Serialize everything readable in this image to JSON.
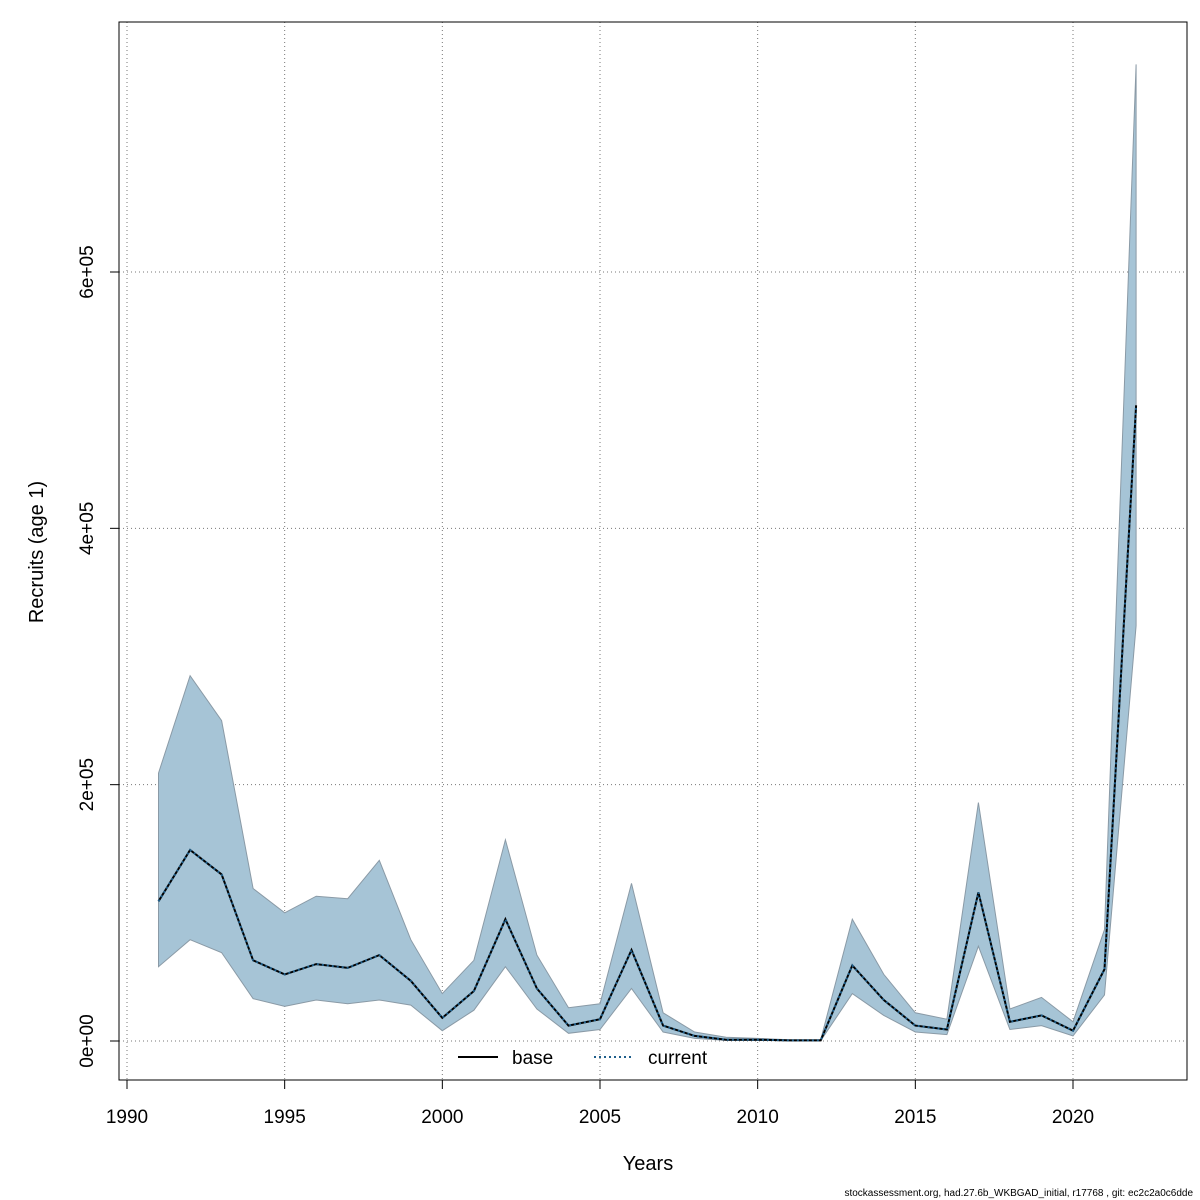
{
  "chart_data": {
    "type": "line",
    "title": "",
    "xlabel": "Years",
    "ylabel": "Recruits (age 1)",
    "xlim": [
      1990,
      2022
    ],
    "ylim": [
      0,
      800000
    ],
    "x_ticks": [
      1990,
      1995,
      2000,
      2005,
      2010,
      2015,
      2020
    ],
    "x_tick_labels": [
      "1990",
      "1995",
      "2000",
      "2005",
      "2010",
      "2015",
      "2020"
    ],
    "y_ticks": [
      0,
      200000,
      400000,
      600000
    ],
    "y_tick_labels": [
      "0e+00",
      "2e+05",
      "4e+05",
      "6e+05"
    ],
    "grid": true,
    "legend_placement": "bottom",
    "band_color": "#a6c4d6",
    "band_edge_color": "#8a9aa6",
    "x": [
      1991,
      1992,
      1993,
      1994,
      1995,
      1996,
      1997,
      1998,
      1999,
      2000,
      2001,
      2002,
      2003,
      2004,
      2005,
      2006,
      2007,
      2008,
      2009,
      2010,
      2011,
      2012,
      2013,
      2014,
      2015,
      2016,
      2017,
      2018,
      2019,
      2020,
      2021,
      2022
    ],
    "band_upper": [
      209000,
      285000,
      250000,
      119000,
      100000,
      113000,
      111000,
      141000,
      79000,
      37000,
      63000,
      157000,
      67000,
      26000,
      29000,
      123000,
      22000,
      7000,
      3000,
      2000,
      1000,
      1000,
      95000,
      52000,
      22000,
      17000,
      186000,
      25000,
      34000,
      15000,
      87000,
      762000
    ],
    "band_lower": [
      58000,
      79000,
      69000,
      33000,
      27000,
      32000,
      29000,
      32000,
      28000,
      8000,
      24000,
      58000,
      25000,
      6000,
      9000,
      41000,
      7000,
      2000,
      500,
      400,
      200,
      200,
      37000,
      20000,
      7000,
      5000,
      74000,
      9000,
      12000,
      4000,
      36000,
      324000
    ],
    "series": [
      {
        "name": "base",
        "line_style": "solid",
        "color": "#000000",
        "values": [
          109000,
          149000,
          130000,
          63000,
          52000,
          60000,
          57000,
          67000,
          47000,
          18000,
          39000,
          95000,
          41000,
          12000,
          17000,
          71000,
          12000,
          4000,
          1000,
          1000,
          500,
          500,
          59000,
          32000,
          12000,
          9000,
          116000,
          15000,
          20000,
          8000,
          56000,
          496000
        ]
      },
      {
        "name": "current",
        "line_style": "dotted",
        "color": "#1f5f8b",
        "values": [
          109000,
          149000,
          130000,
          63000,
          52000,
          60000,
          57000,
          67000,
          47000,
          18000,
          39000,
          95000,
          41000,
          12000,
          17000,
          71000,
          12000,
          4000,
          1000,
          1000,
          500,
          500,
          59000,
          32000,
          12000,
          9000,
          116000,
          15000,
          20000,
          8000,
          56000,
          496000
        ]
      }
    ]
  },
  "footer": "stockassessment.org, had.27.6b_WKBGAD_initial, r17768 , git: ec2c2a0c6dde"
}
